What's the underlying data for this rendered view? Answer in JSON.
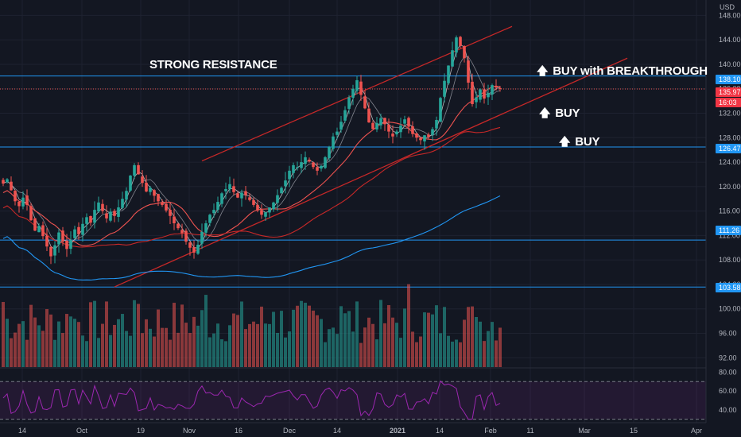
{
  "currency_label": "USD",
  "annotations": {
    "resistance": "STRONG RESISTANCE",
    "buy_breakthrough": "BUY with BREAKTHROUGH",
    "buy_1": "BUY",
    "buy_2": "BUY",
    "arrow_icon": "up-arrow-icon"
  },
  "colors": {
    "background": "#131722",
    "grid": "#1e2230",
    "up": "#26a69a",
    "down": "#ef5350",
    "trend": "#c62828",
    "level": "#2196f3",
    "price_badge": "#f23645",
    "rsi_line": "#9c27b0"
  },
  "chart_data": {
    "type": "candlestick",
    "y_axis_labels": [
      "148.00",
      "144.00",
      "140.00",
      "136.00",
      "132.00",
      "128.00",
      "124.00",
      "120.00",
      "116.00",
      "112.00",
      "108.00",
      "104.00",
      "100.00",
      "96.00",
      "92.00"
    ],
    "ylim": [
      91,
      150
    ],
    "x_axis_labels": [
      "14",
      "Oct",
      "19",
      "Nov",
      "16",
      "Dec",
      "14",
      "2021",
      "14",
      "Feb",
      "11",
      "Mar",
      "15",
      "Apr"
    ],
    "price_badges": [
      {
        "value": "138.10",
        "kind": "level"
      },
      {
        "value": "135.97",
        "kind": "price"
      },
      {
        "value": "16:03",
        "kind": "countdown"
      },
      {
        "value": "126.47",
        "kind": "level"
      },
      {
        "value": "111.26",
        "kind": "level"
      },
      {
        "value": "103.58",
        "kind": "level"
      }
    ],
    "horizontal_levels": [
      138.1,
      126.47,
      111.26,
      103.58
    ],
    "candles_close": [
      120.5,
      121.2,
      119.4,
      117.6,
      116.8,
      118.2,
      117.0,
      114.5,
      112.8,
      113.6,
      111.9,
      110.2,
      108.6,
      110.4,
      112.5,
      111.0,
      109.8,
      111.3,
      113.0,
      112.2,
      113.9,
      115.0,
      114.1,
      116.2,
      117.4,
      116.0,
      114.8,
      115.9,
      115.2,
      116.6,
      118.0,
      119.3,
      121.8,
      123.5,
      122.0,
      120.6,
      119.2,
      119.8,
      118.5,
      117.6,
      117.0,
      116.1,
      115.2,
      114.0,
      113.2,
      112.4,
      111.0,
      110.0,
      109.2,
      110.5,
      112.6,
      114.0,
      115.4,
      116.2,
      117.5,
      118.9,
      119.6,
      120.4,
      119.1,
      118.2,
      119.0,
      118.6,
      117.8,
      117.0,
      116.1,
      115.4,
      115.8,
      116.6,
      117.4,
      118.6,
      119.8,
      121.0,
      122.6,
      123.5,
      123.2,
      124.0,
      124.8,
      124.1,
      123.2,
      122.6,
      123.4,
      124.8,
      126.5,
      128.2,
      129.0,
      130.6,
      132.5,
      134.6,
      136.0,
      137.4,
      135.0,
      132.8,
      130.5,
      129.4,
      130.4,
      131.2,
      130.2,
      129.0,
      128.2,
      129.0,
      130.0,
      131.0,
      129.8,
      128.6,
      128.0,
      127.6,
      128.4,
      128.1,
      129.4,
      130.9,
      134.5,
      137.3,
      139.8,
      142.3,
      144.4,
      143.0,
      141.0,
      137.0,
      133.5,
      134.6,
      135.9,
      134.4,
      135.3,
      136.6,
      136.2,
      135.97
    ],
    "moving_averages": [
      {
        "color": "#ffffff",
        "kind": "fast"
      },
      {
        "color": "#b2b5be",
        "kind": "slow"
      },
      {
        "color": "#ef5350",
        "kind": "mid"
      },
      {
        "color": "#c62828",
        "kind": "long"
      },
      {
        "color": "#2196f3",
        "kind": "longest"
      }
    ],
    "trend_lines": [
      {
        "from": [
          22,
          124.2
        ],
        "to": [
          126,
          146.2
        ],
        "color": "#c62828"
      },
      {
        "from": [
          0,
          103.6
        ],
        "to": [
          155,
          141.0
        ],
        "color": "#c62828"
      }
    ],
    "volume": {
      "axis": "shared-bottom",
      "max_reference": 96
    },
    "rsi": {
      "y_axis_labels": [
        "80.00",
        "60.00",
        "40.00"
      ],
      "ylim": [
        28,
        82
      ],
      "bands": [
        70,
        30
      ]
    }
  }
}
